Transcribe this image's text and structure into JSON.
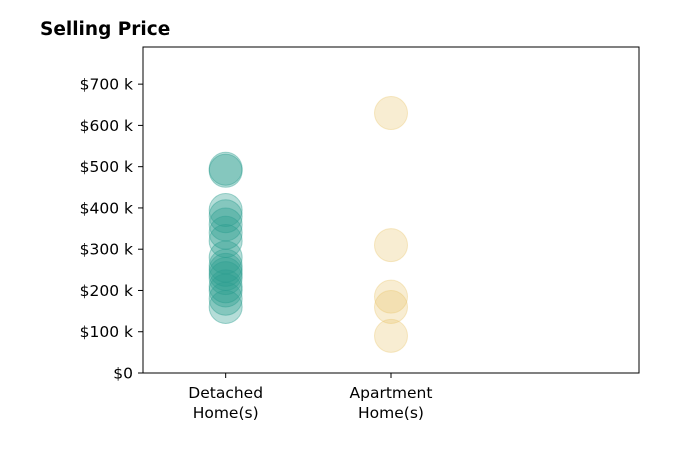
{
  "chart_data": {
    "type": "scatter",
    "title": "Selling Price",
    "xlabel": "",
    "ylabel": "",
    "categories": [
      "Detached\nHome(s)",
      "Apartment\nHome(s)"
    ],
    "xlim": [
      -0.5,
      2.5
    ],
    "ylim": [
      0,
      790000
    ],
    "yticks": [
      0,
      100000,
      200000,
      300000,
      400000,
      500000,
      600000,
      700000
    ],
    "ytick_labels": [
      "$0",
      "$100 k",
      "$200 k",
      "$300 k",
      "$400 k",
      "$500 k",
      "$600 k",
      "$700 k"
    ],
    "grid": false,
    "series": [
      {
        "category_index": 0,
        "color": "#2a9d8f",
        "opacity": 0.35,
        "values": [
          160000,
          180000,
          200000,
          210000,
          230000,
          240000,
          250000,
          260000,
          280000,
          320000,
          340000,
          360000,
          380000,
          395000,
          490000,
          495000
        ]
      },
      {
        "category_index": 1,
        "color": "#e9c46a",
        "opacity": 0.3,
        "values": [
          90000,
          160000,
          185000,
          310000,
          630000
        ]
      }
    ]
  }
}
